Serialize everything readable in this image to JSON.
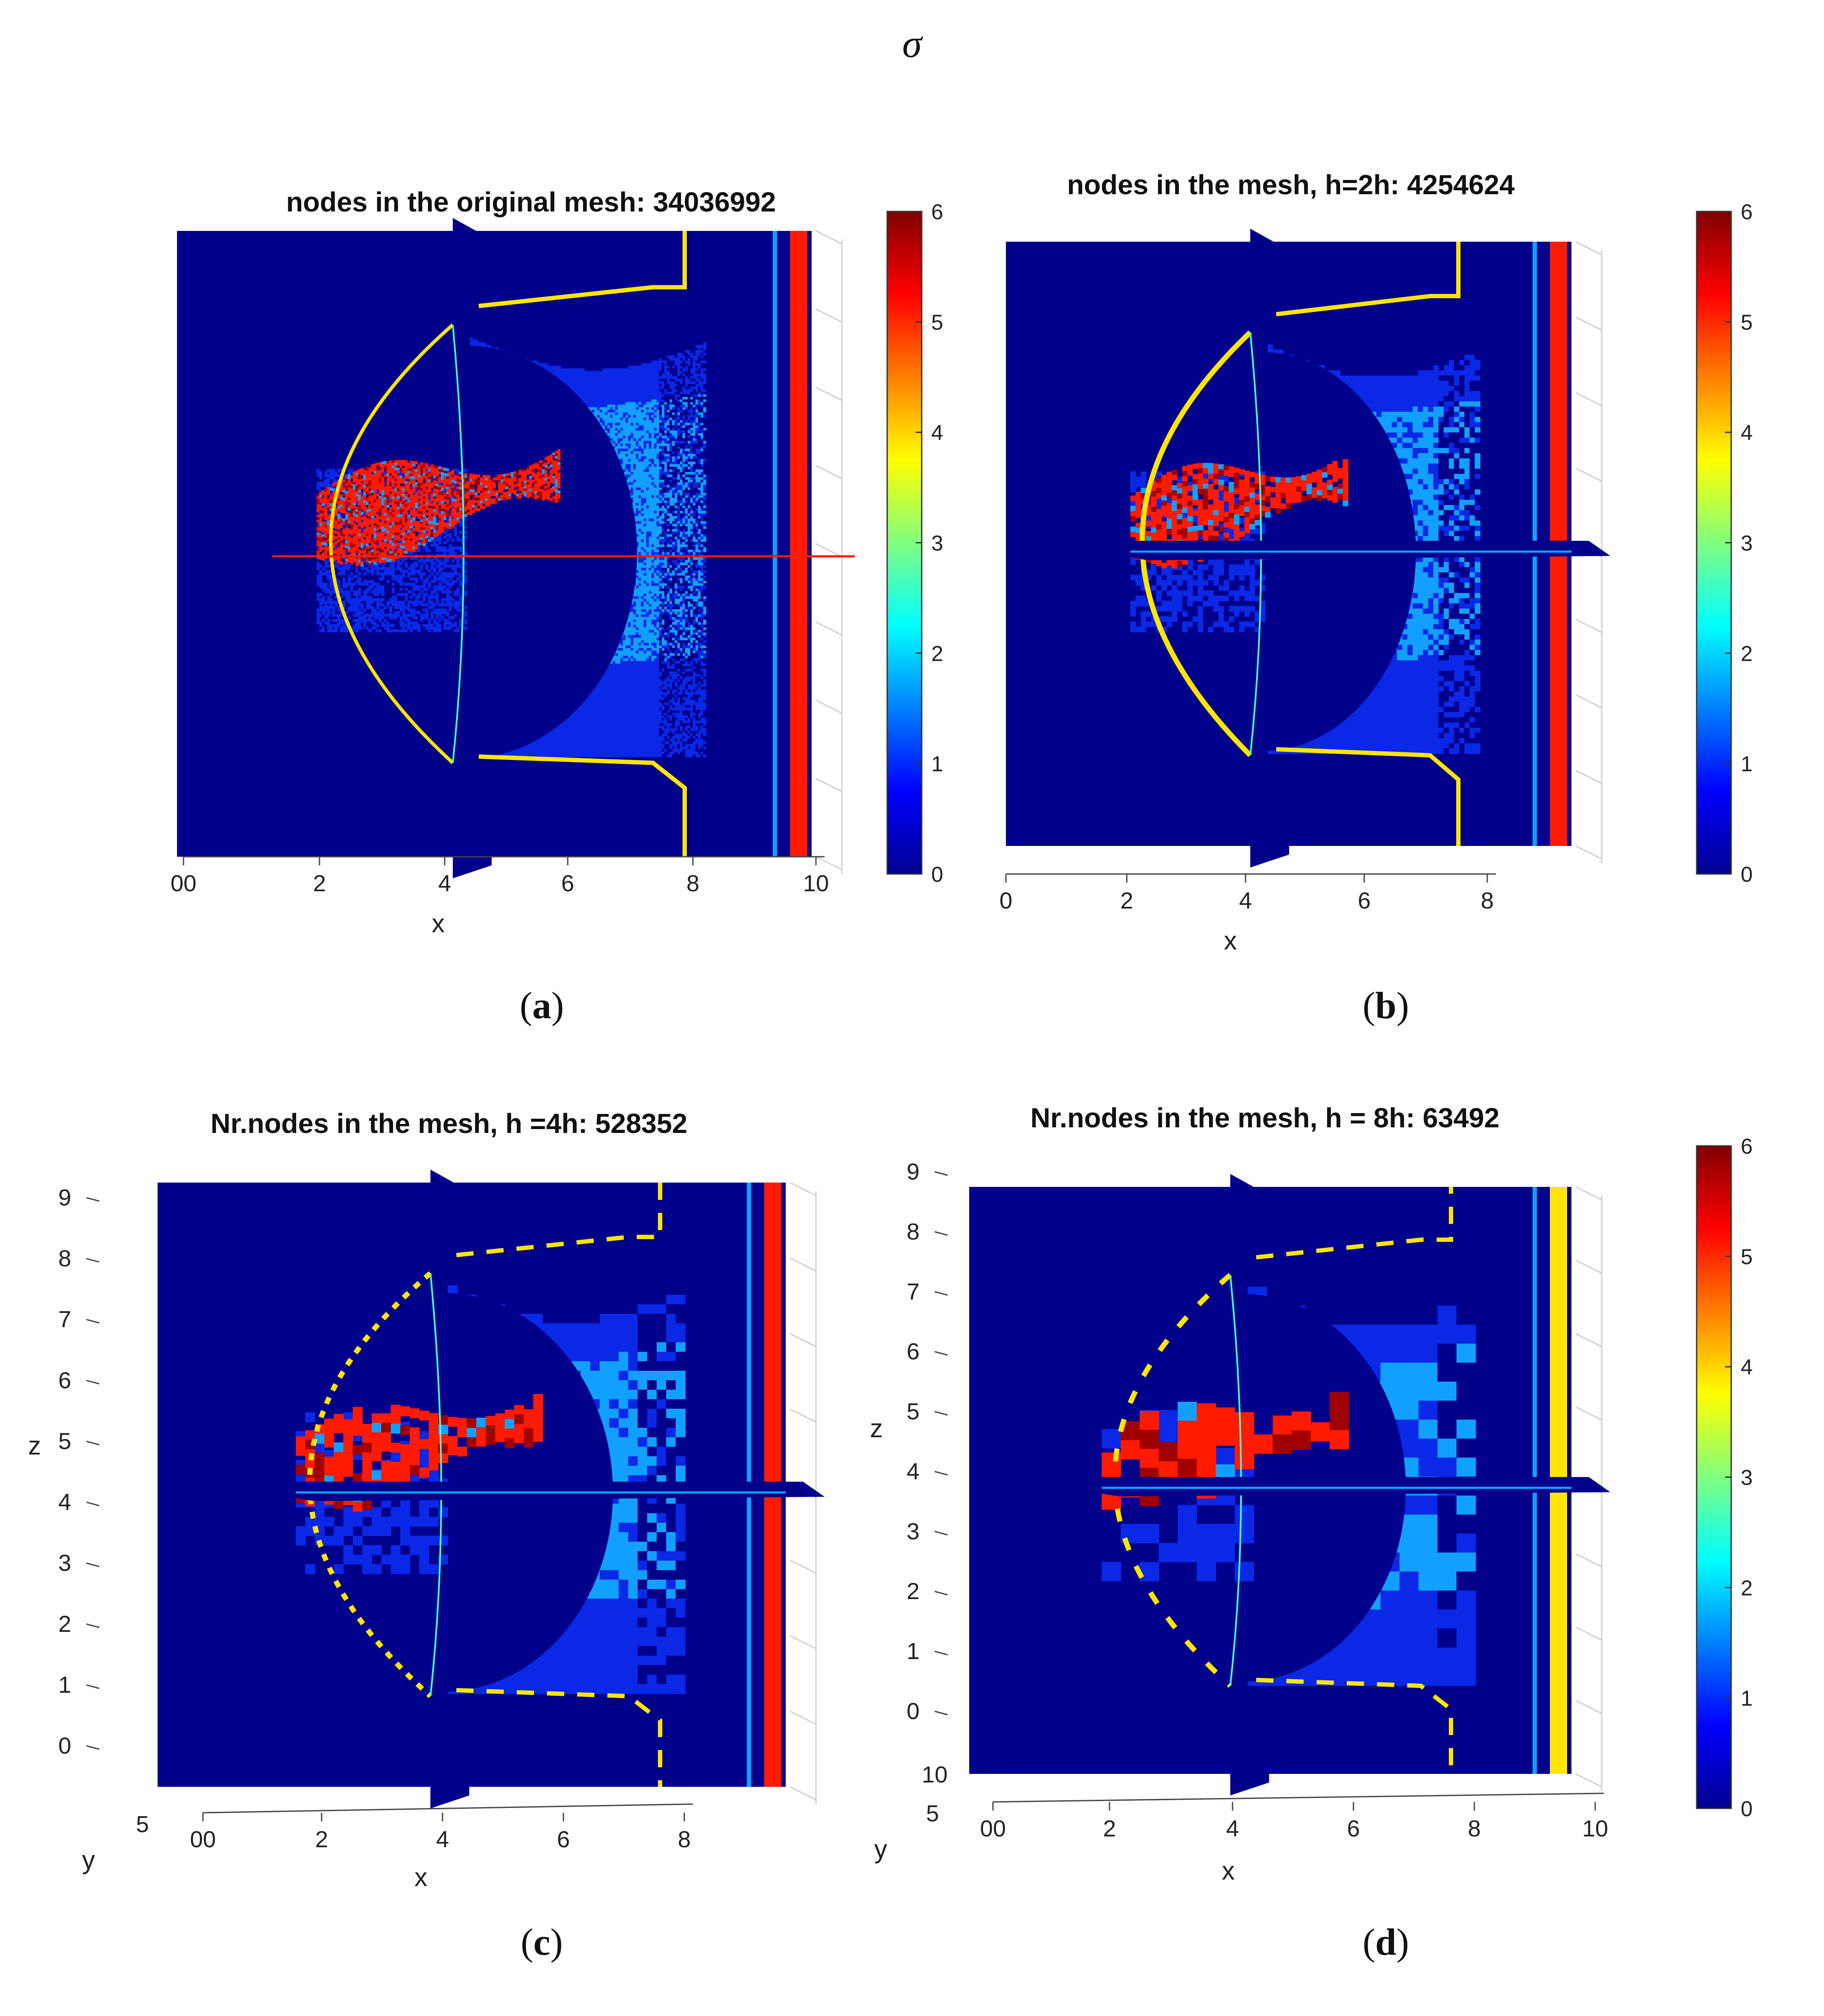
{
  "figure": {
    "header": "σ",
    "captions": [
      "a",
      "b",
      "c",
      "d"
    ]
  },
  "chart_data": [
    {
      "type": "heatmap",
      "panel": "a",
      "title": "nodes in the original mesh: 34036992",
      "xlabel": "x",
      "xticks": [
        "00",
        "2",
        "4",
        "6",
        "8",
        "10"
      ],
      "xlim": [
        0,
        10
      ],
      "colorbar": {
        "min": 0,
        "max": 6,
        "ticks": [
          "0",
          "1",
          "2",
          "3",
          "4",
          "5",
          "6"
        ],
        "colormap": "jet"
      },
      "field": "sigma",
      "background_value": 1,
      "inclusion_value": 5,
      "boundary_value": 3.5
    },
    {
      "type": "heatmap",
      "panel": "b",
      "title": "nodes in the mesh, h=2h: 4254624",
      "xlabel": "x",
      "xticks": [
        "0",
        "2",
        "4",
        "6",
        "8"
      ],
      "xlim": [
        0,
        10
      ],
      "colorbar": {
        "min": 0,
        "max": 6,
        "ticks": [
          "0",
          "1",
          "2",
          "3",
          "4",
          "5",
          "6"
        ],
        "colormap": "jet"
      },
      "field": "sigma"
    },
    {
      "type": "heatmap",
      "panel": "c",
      "title": "Nr.nodes in the mesh, h =4h: 528352",
      "xlabel": "x",
      "ylabel": "y",
      "zlabel": "z",
      "xticks": [
        "00",
        "2",
        "4",
        "6",
        "8"
      ],
      "yticks": [
        "5"
      ],
      "zticks": [
        "0",
        "1",
        "2",
        "3",
        "4",
        "5",
        "6",
        "7",
        "8",
        "9"
      ],
      "field": "sigma"
    },
    {
      "type": "heatmap",
      "panel": "d",
      "title": "Nr.nodes in the mesh, h = 8h: 63492",
      "xlabel": "x",
      "ylabel": "y",
      "zlabel": "z",
      "xticks": [
        "00",
        "2",
        "4",
        "6",
        "8",
        "10"
      ],
      "yticks": [
        "10",
        "5"
      ],
      "zticks": [
        "0",
        "1",
        "2",
        "3",
        "4",
        "5",
        "6",
        "7",
        "8",
        "9"
      ],
      "colorbar": {
        "min": 0,
        "max": 6,
        "ticks": [
          "0",
          "1",
          "2",
          "3",
          "4",
          "5",
          "6"
        ],
        "colormap": "jet"
      },
      "field": "sigma"
    }
  ],
  "colors": {
    "background": "#00008f",
    "domain": "#00008b",
    "medium_blue": "#0a28e6",
    "light_blue": "#12a0ff",
    "red": "#ff1a00",
    "dark_red": "#a00000",
    "yellow": "#ffe600",
    "cyan": "#3fffd0"
  }
}
